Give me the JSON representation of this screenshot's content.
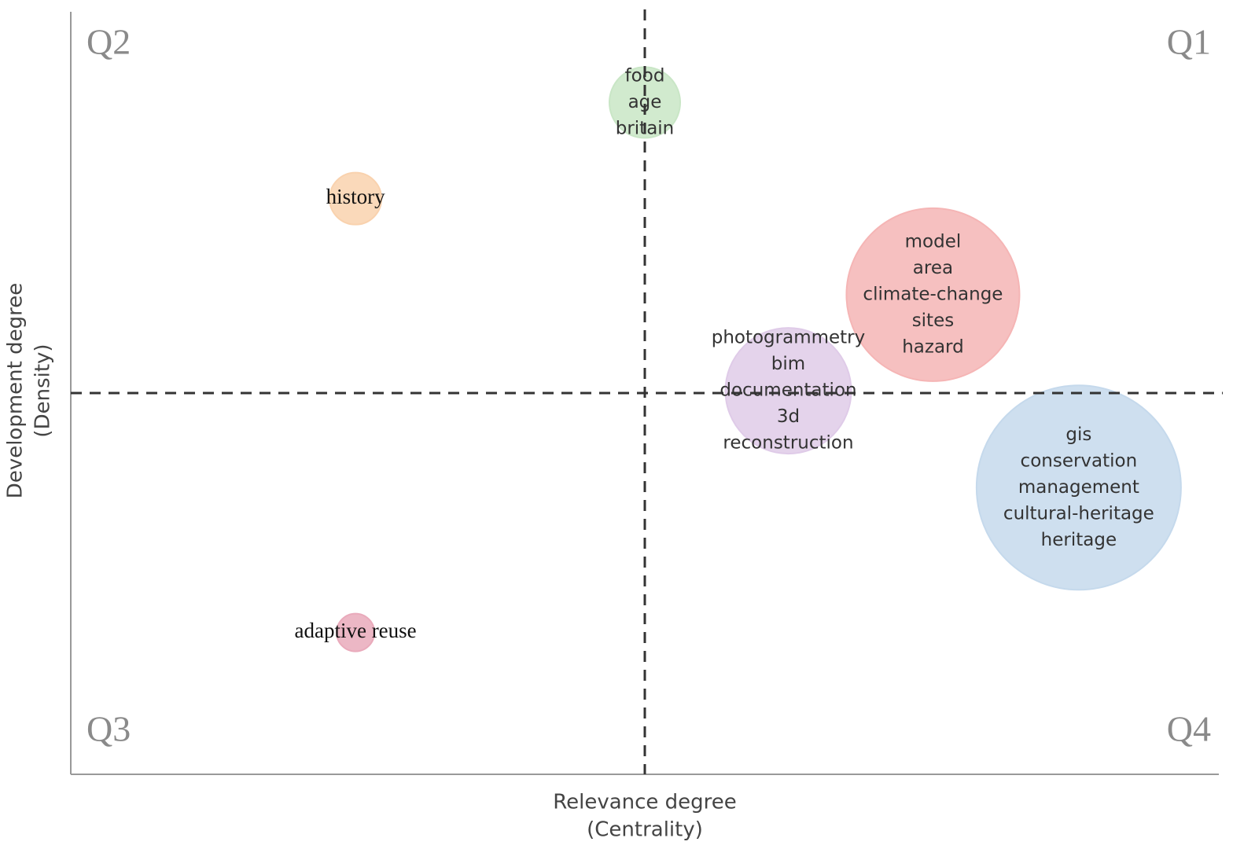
{
  "chart_data": {
    "type": "bubble",
    "quadrant_labels": [
      "Q2",
      "Q1",
      "Q3",
      "Q4"
    ],
    "x_label": [
      "Relevance degree",
      "(Centrality)"
    ],
    "y_label": [
      "Development degree",
      "(Density)"
    ],
    "xlim": [
      0,
      100
    ],
    "ylim": [
      0,
      100
    ],
    "reference_x": 50,
    "reference_y": 50,
    "clusters": [
      {
        "labels": [
          "food",
          "age",
          "britain"
        ],
        "x": 50,
        "y": 88.1,
        "size": 4.5,
        "color": "#c9e6c6",
        "font": "sans"
      },
      {
        "labels": [
          "history"
        ],
        "x": 24.8,
        "y": 75.5,
        "size": 3.3,
        "color": "#f9d2ae",
        "font": "serif"
      },
      {
        "labels": [
          "model",
          "area",
          "climate-change",
          "sites",
          "hazard"
        ],
        "x": 75.1,
        "y": 62.9,
        "size": 11,
        "color": "#f5b5b5",
        "font": "sans"
      },
      {
        "labels": [
          "photogrammetry",
          "bim",
          "documentation",
          "3d",
          "reconstruction"
        ],
        "x": 62.5,
        "y": 50.3,
        "size": 8,
        "color": "#dfcbe8",
        "font": "sans"
      },
      {
        "labels": [
          "gis",
          "conservation",
          "management",
          "cultural-heritage",
          "heritage"
        ],
        "x": 87.8,
        "y": 37.6,
        "size": 13,
        "color": "#c5d9ec",
        "font": "sans"
      },
      {
        "labels": [
          "adaptive reuse"
        ],
        "x": 24.8,
        "y": 18.6,
        "size": 2.4,
        "color": "#e9aabb",
        "font": "serif"
      }
    ]
  }
}
